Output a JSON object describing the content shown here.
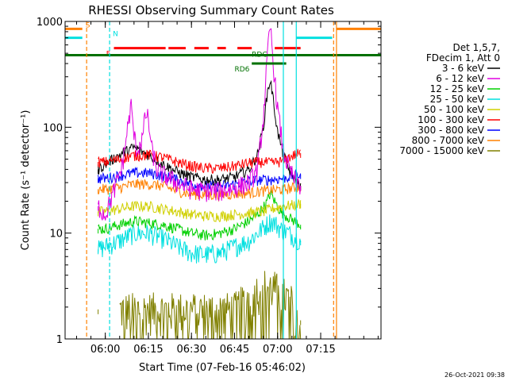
{
  "chart_data": {
    "type": "line",
    "title": "RHESSI Observing Summary Count Rates",
    "xlabel": "Start Time (07-Feb-16 05:46:02)",
    "ylabel": "Count Rate (s⁻¹ detector⁻¹)",
    "yscale": "log",
    "ylim": [
      1,
      1000
    ],
    "xlim_minutes": [
      -14,
      96
    ],
    "y_ticks": [
      {
        "value": 1,
        "label": "1"
      },
      {
        "value": 10,
        "label": "10"
      },
      {
        "value": 100,
        "label": "100"
      },
      {
        "value": 1000,
        "label": "1000"
      }
    ],
    "x_ticks": [
      {
        "minute": 0,
        "label": "06:00"
      },
      {
        "minute": 15,
        "label": "06:15"
      },
      {
        "minute": 30,
        "label": "06:30"
      },
      {
        "minute": 45,
        "label": "06:45"
      },
      {
        "minute": 60,
        "label": "07:00"
      },
      {
        "minute": 75,
        "label": "07:15"
      }
    ],
    "data_window_minutes": [
      -2.5,
      68
    ],
    "legend_header": [
      "Det 1,5,7,",
      "FDecim 1, Att 0"
    ],
    "series": [
      {
        "name": "3 - 6 keV",
        "color": "#000000",
        "points": [
          [
            -2.5,
            40
          ],
          [
            0,
            45
          ],
          [
            5,
            55
          ],
          [
            10,
            65
          ],
          [
            15,
            55
          ],
          [
            20,
            45
          ],
          [
            25,
            38
          ],
          [
            30,
            34
          ],
          [
            35,
            32
          ],
          [
            40,
            32
          ],
          [
            45,
            34
          ],
          [
            50,
            40
          ],
          [
            53,
            55
          ],
          [
            55,
            100
          ],
          [
            56.5,
            220
          ],
          [
            57.5,
            280
          ],
          [
            58.5,
            180
          ],
          [
            60,
            90
          ],
          [
            62,
            55
          ],
          [
            64,
            40
          ],
          [
            66,
            32
          ],
          [
            68,
            28
          ]
        ]
      },
      {
        "name": "6 - 12 keV",
        "color": "#e000e0",
        "points": [
          [
            -2.5,
            18
          ],
          [
            0,
            15
          ],
          [
            3,
            25
          ],
          [
            6,
            45
          ],
          [
            8,
            110
          ],
          [
            9,
            160
          ],
          [
            10,
            85
          ],
          [
            11,
            60
          ],
          [
            13,
            80
          ],
          [
            14,
            135
          ],
          [
            15,
            120
          ],
          [
            16,
            65
          ],
          [
            18,
            40
          ],
          [
            20,
            36
          ],
          [
            25,
            30
          ],
          [
            30,
            26
          ],
          [
            35,
            25
          ],
          [
            40,
            25
          ],
          [
            45,
            27
          ],
          [
            50,
            30
          ],
          [
            53,
            40
          ],
          [
            55,
            120
          ],
          [
            56.5,
            500
          ],
          [
            57.5,
            900
          ],
          [
            58.5,
            400
          ],
          [
            60,
            150
          ],
          [
            62,
            60
          ],
          [
            64,
            40
          ],
          [
            66,
            32
          ],
          [
            68,
            28
          ]
        ]
      },
      {
        "name": "12 - 25 keV",
        "color": "#00d000",
        "points": [
          [
            -2.5,
            11
          ],
          [
            0,
            11
          ],
          [
            5,
            12
          ],
          [
            10,
            13
          ],
          [
            15,
            12.5
          ],
          [
            20,
            12
          ],
          [
            25,
            11
          ],
          [
            30,
            10
          ],
          [
            35,
            9.5
          ],
          [
            40,
            10
          ],
          [
            45,
            11
          ],
          [
            50,
            13
          ],
          [
            53,
            15
          ],
          [
            56,
            19
          ],
          [
            57.5,
            24
          ],
          [
            59,
            20
          ],
          [
            61,
            16
          ],
          [
            64,
            14
          ],
          [
            68,
            12
          ]
        ]
      },
      {
        "name": "25 - 50 keV",
        "color": "#00e0e0",
        "points": [
          [
            -2.5,
            7
          ],
          [
            0,
            7.5
          ],
          [
            5,
            8.5
          ],
          [
            10,
            10
          ],
          [
            15,
            10
          ],
          [
            20,
            9
          ],
          [
            25,
            7.5
          ],
          [
            30,
            6.5
          ],
          [
            35,
            6.3
          ],
          [
            40,
            6.5
          ],
          [
            45,
            7.5
          ],
          [
            50,
            8.5
          ],
          [
            53,
            10
          ],
          [
            56,
            12
          ],
          [
            57.5,
            13
          ],
          [
            59,
            12.5
          ],
          [
            61,
            11
          ],
          [
            64,
            10
          ],
          [
            68,
            8.5
          ]
        ]
      },
      {
        "name": "50 - 100 keV",
        "color": "#d0d000",
        "points": [
          [
            -2.5,
            16
          ],
          [
            0,
            16
          ],
          [
            5,
            17
          ],
          [
            10,
            18
          ],
          [
            15,
            18
          ],
          [
            20,
            17
          ],
          [
            25,
            16
          ],
          [
            30,
            15
          ],
          [
            35,
            14.5
          ],
          [
            40,
            14.5
          ],
          [
            45,
            15
          ],
          [
            50,
            15.5
          ],
          [
            55,
            16
          ],
          [
            58,
            17
          ],
          [
            62,
            18
          ],
          [
            66,
            18.5
          ],
          [
            68,
            19
          ]
        ]
      },
      {
        "name": "100 - 300 keV",
        "color": "#ff0000",
        "points": [
          [
            -2.5,
            47
          ],
          [
            0,
            47
          ],
          [
            5,
            50
          ],
          [
            10,
            54
          ],
          [
            15,
            55
          ],
          [
            20,
            52
          ],
          [
            25,
            47
          ],
          [
            30,
            43
          ],
          [
            35,
            41
          ],
          [
            40,
            41
          ],
          [
            45,
            43
          ],
          [
            50,
            46
          ],
          [
            55,
            47
          ],
          [
            58,
            46
          ],
          [
            62,
            48
          ],
          [
            64,
            52
          ],
          [
            66,
            55
          ],
          [
            68,
            57
          ]
        ]
      },
      {
        "name": "300 - 800 keV",
        "color": "#0000ff",
        "points": [
          [
            -2.5,
            33
          ],
          [
            0,
            33
          ],
          [
            5,
            35
          ],
          [
            10,
            37
          ],
          [
            15,
            37
          ],
          [
            20,
            35
          ],
          [
            25,
            32
          ],
          [
            30,
            29
          ],
          [
            35,
            28
          ],
          [
            40,
            28
          ],
          [
            45,
            29
          ],
          [
            50,
            31
          ],
          [
            55,
            32
          ],
          [
            58,
            32
          ],
          [
            62,
            33
          ],
          [
            66,
            35
          ],
          [
            68,
            36
          ]
        ]
      },
      {
        "name": "800 - 7000 keV",
        "color": "#ff8000",
        "points": [
          [
            -2.5,
            26
          ],
          [
            0,
            26
          ],
          [
            5,
            27
          ],
          [
            10,
            29
          ],
          [
            15,
            29
          ],
          [
            20,
            28
          ],
          [
            25,
            25
          ],
          [
            30,
            23.5
          ],
          [
            35,
            23
          ],
          [
            40,
            23
          ],
          [
            45,
            23.5
          ],
          [
            50,
            24
          ],
          [
            55,
            25
          ],
          [
            58,
            25.5
          ],
          [
            62,
            26
          ],
          [
            66,
            27
          ],
          [
            68,
            27.5
          ]
        ]
      },
      {
        "name": "7000 - 15000 keV",
        "color": "#808000",
        "points": [
          [
            5,
            1.9
          ],
          [
            10,
            1.9
          ],
          [
            15,
            1.9
          ],
          [
            20,
            1.9
          ],
          [
            25,
            1.9
          ],
          [
            45,
            1.9
          ],
          [
            50,
            2.5
          ],
          [
            55,
            3.2
          ],
          [
            60,
            3
          ],
          [
            65,
            2.2
          ],
          [
            68,
            1.5
          ]
        ]
      }
    ],
    "flag_lines": [
      {
        "label": "S",
        "color": "#ff8000",
        "y": 850,
        "segments": [
          [
            -14,
            -8
          ]
        ]
      },
      {
        "label": "N",
        "color": "#00e0e0",
        "y": 700,
        "segments": [
          [
            -14,
            -8
          ]
        ]
      },
      {
        "label": "F",
        "color": "#ff0000",
        "y": 560,
        "segments": [
          [
            3,
            21
          ],
          [
            22,
            28
          ],
          [
            31,
            36
          ],
          [
            39,
            42
          ],
          [
            46,
            51
          ],
          [
            59,
            68
          ]
        ]
      },
      {
        "label": "RDC",
        "color": "#007000",
        "y": 480,
        "segments": [
          [
            -14,
            96
          ]
        ]
      },
      {
        "label": "RD6",
        "color": "#007000",
        "y": 400,
        "segments": [
          [
            51,
            63
          ]
        ]
      }
    ],
    "vertical_lines": [
      {
        "minute": -6.5,
        "color": "#ff8000",
        "style": "dashed"
      },
      {
        "minute": 1.5,
        "color": "#00e0e0",
        "style": "dashed"
      },
      {
        "minute": 62,
        "color": "#00e0e0",
        "style": "solid"
      },
      {
        "minute": 66.5,
        "color": "#00e0e0",
        "style": "solid"
      },
      {
        "minute": 79.5,
        "color": "#ff8000",
        "style": "dashed"
      },
      {
        "minute": 80.5,
        "color": "#ff8000",
        "style": "solid"
      }
    ],
    "timestamp": "26-Oct-2021 09:38"
  }
}
